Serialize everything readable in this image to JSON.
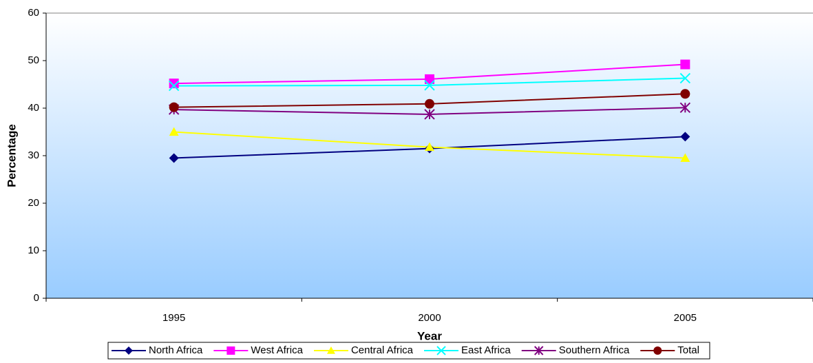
{
  "chart_data": {
    "type": "line",
    "x_label": "Year",
    "y_label": "Percentage",
    "categories": [
      "1995",
      "2000",
      "2005"
    ],
    "series": [
      {
        "name": "North Africa",
        "color": "#000080",
        "marker": "diamond",
        "values": [
          29.5,
          31.5,
          34
        ]
      },
      {
        "name": "West Africa",
        "color": "#ff00ff",
        "marker": "square",
        "values": [
          45.2,
          46.1,
          49.2
        ]
      },
      {
        "name": "Central Africa",
        "color": "#ffff00",
        "marker": "triangle",
        "values": [
          35,
          31.8,
          29.5
        ]
      },
      {
        "name": "East Africa",
        "color": "#00ffff",
        "marker": "x",
        "values": [
          44.7,
          44.8,
          46.3
        ]
      },
      {
        "name": "Southern Africa",
        "color": "#800080",
        "marker": "asterisk",
        "values": [
          39.7,
          38.7,
          40.1
        ]
      },
      {
        "name": "Total",
        "color": "#800000",
        "marker": "circle",
        "values": [
          40.2,
          40.9,
          43
        ]
      }
    ],
    "ylim": [
      0,
      60
    ],
    "yticks": [
      0,
      10,
      20,
      30,
      40,
      50,
      60
    ],
    "legend": "bottom"
  }
}
